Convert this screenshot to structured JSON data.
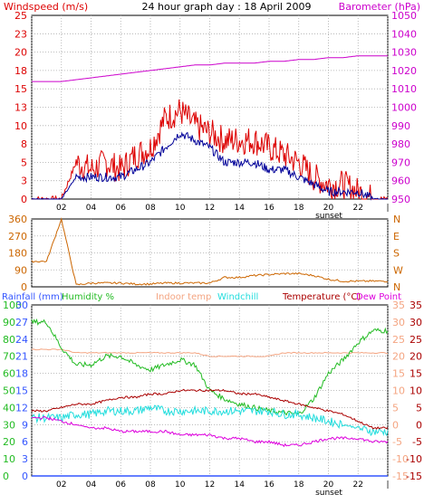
{
  "title": "24 hour graph day : 18 April 2009",
  "colors": {
    "wind": "#dd0000",
    "wind_avg": "#000099",
    "barometer": "#cc00cc",
    "direction": "#cc6600",
    "rainfall": "#3355ff",
    "humidity": "#22bb22",
    "indoor": "#f4a582",
    "windchill": "#22dddd",
    "temperature": "#aa0000",
    "dewpoint": "#dd00dd",
    "grid": "#aaaaaa",
    "frame": "#000000"
  },
  "x_ticks": [
    "02",
    "04",
    "06",
    "08",
    "10",
    "12",
    "14",
    "16",
    "18",
    "20",
    "22",
    "|"
  ],
  "sunset_label": "sunset",
  "chart_data": [
    {
      "type": "line",
      "title": "24 hour graph day : 18 April 2009",
      "ylabel": "Windspeed (m/s)",
      "y2label": "Barometer (hPa)",
      "ylim": [
        0,
        25
      ],
      "y_ticks": [
        "0",
        "3",
        "5",
        "8",
        "10",
        "13",
        "15",
        "18",
        "20",
        "23",
        "25"
      ],
      "y2lim": [
        950,
        1050
      ],
      "y2_ticks": [
        "950",
        "960",
        "970",
        "980",
        "990",
        "1000",
        "1010",
        "1020",
        "1030",
        "1040",
        "1050"
      ],
      "x_hours": [
        0,
        1,
        2,
        3,
        4,
        5,
        6,
        7,
        8,
        9,
        10,
        11,
        12,
        13,
        14,
        15,
        16,
        17,
        18,
        19,
        20,
        21,
        22,
        23
      ],
      "series": [
        {
          "values": [
            0,
            0,
            0,
            5,
            4,
            5,
            4,
            6,
            7,
            11,
            12,
            10,
            9,
            8,
            8,
            8,
            7,
            6,
            5,
            3,
            2,
            2,
            1,
            0
          ]
        },
        {
          "values": [
            0,
            0,
            0,
            3,
            3,
            3,
            3,
            4,
            5,
            7,
            9,
            8,
            7,
            5,
            5,
            5,
            4,
            4,
            3,
            2,
            1,
            1,
            1,
            0
          ]
        },
        {
          "values": [
            1014,
            1014,
            1014,
            1015,
            1016,
            1017,
            1018,
            1019,
            1020,
            1021,
            1022,
            1023,
            1023,
            1024,
            1024,
            1024,
            1025,
            1025,
            1026,
            1026,
            1027,
            1027,
            1028,
            1028
          ]
        }
      ]
    },
    {
      "type": "line",
      "ylim": [
        0,
        360
      ],
      "y_ticks": [
        "0",
        "90",
        "180",
        "270",
        "360"
      ],
      "y2_ticks": [
        "N",
        "W",
        "S",
        "E",
        "N"
      ],
      "x_hours": [
        0,
        1,
        2,
        3,
        4,
        5,
        6,
        7,
        8,
        9,
        10,
        11,
        12,
        13,
        14,
        15,
        16,
        17,
        18,
        19,
        20,
        21,
        22,
        23
      ],
      "series": [
        {
          "values": [
            135,
            135,
            360,
            10,
            20,
            20,
            20,
            15,
            15,
            20,
            20,
            20,
            20,
            50,
            50,
            60,
            65,
            70,
            70,
            60,
            40,
            30,
            30,
            30
          ]
        }
      ]
    },
    {
      "type": "line",
      "legend": [
        "Rainfall (mm)",
        "Humidity %",
        "Indoor temp",
        "Windchill",
        "Temperature (°C)",
        "Dew Point"
      ],
      "y_ticks_rain": [
        "0",
        "3",
        "6",
        "9",
        "12",
        "15",
        "18",
        "21",
        "24",
        "27",
        "30"
      ],
      "y_ticks_humidity": [
        "0",
        "10",
        "20",
        "30",
        "40",
        "50",
        "60",
        "70",
        "80",
        "90",
        "100"
      ],
      "y_ticks_temp": [
        "-15",
        "-10",
        "-5",
        "0",
        "5",
        "10",
        "15",
        "20",
        "25",
        "30",
        "35"
      ],
      "temp_lim": [
        -15,
        35
      ],
      "humidity_lim": [
        0,
        100
      ],
      "x_hours": [
        0,
        1,
        2,
        3,
        4,
        5,
        6,
        7,
        8,
        9,
        10,
        11,
        12,
        13,
        14,
        15,
        16,
        17,
        18,
        19,
        20,
        21,
        22,
        23
      ],
      "series": [
        {
          "values": [
            0,
            0,
            0,
            0,
            0,
            0,
            0,
            0,
            0,
            0,
            0,
            0,
            0,
            0,
            0,
            0,
            0,
            0,
            0,
            0,
            0,
            0,
            0,
            0
          ]
        },
        {
          "values": [
            90,
            90,
            75,
            65,
            65,
            70,
            70,
            65,
            62,
            65,
            68,
            65,
            50,
            45,
            42,
            40,
            38,
            37,
            36,
            45,
            60,
            68,
            78,
            85
          ]
        },
        {
          "values": [
            22,
            22,
            22,
            21,
            21,
            21,
            21,
            21,
            21,
            21,
            21,
            21,
            20,
            20,
            20,
            20,
            20,
            21,
            21,
            21,
            21,
            21,
            21,
            21
          ]
        },
        {
          "values": [
            2,
            2,
            2,
            3,
            3,
            4,
            4,
            4,
            5,
            4,
            4,
            4,
            4,
            4,
            4,
            4,
            4,
            3,
            3,
            2,
            1,
            0,
            -1,
            -2
          ]
        },
        {
          "values": [
            4,
            4,
            5,
            6,
            6,
            7,
            8,
            8,
            9,
            9,
            10,
            10,
            10,
            10,
            9,
            9,
            8,
            7,
            6,
            5,
            4,
            3,
            1,
            -1
          ]
        },
        {
          "values": [
            2,
            2,
            1,
            0,
            -1,
            -1,
            -2,
            -2,
            -2,
            -2,
            -3,
            -3,
            -3,
            -4,
            -4,
            -5,
            -5,
            -6,
            -6,
            -5,
            -4,
            -4,
            -4,
            -5
          ]
        }
      ]
    }
  ]
}
